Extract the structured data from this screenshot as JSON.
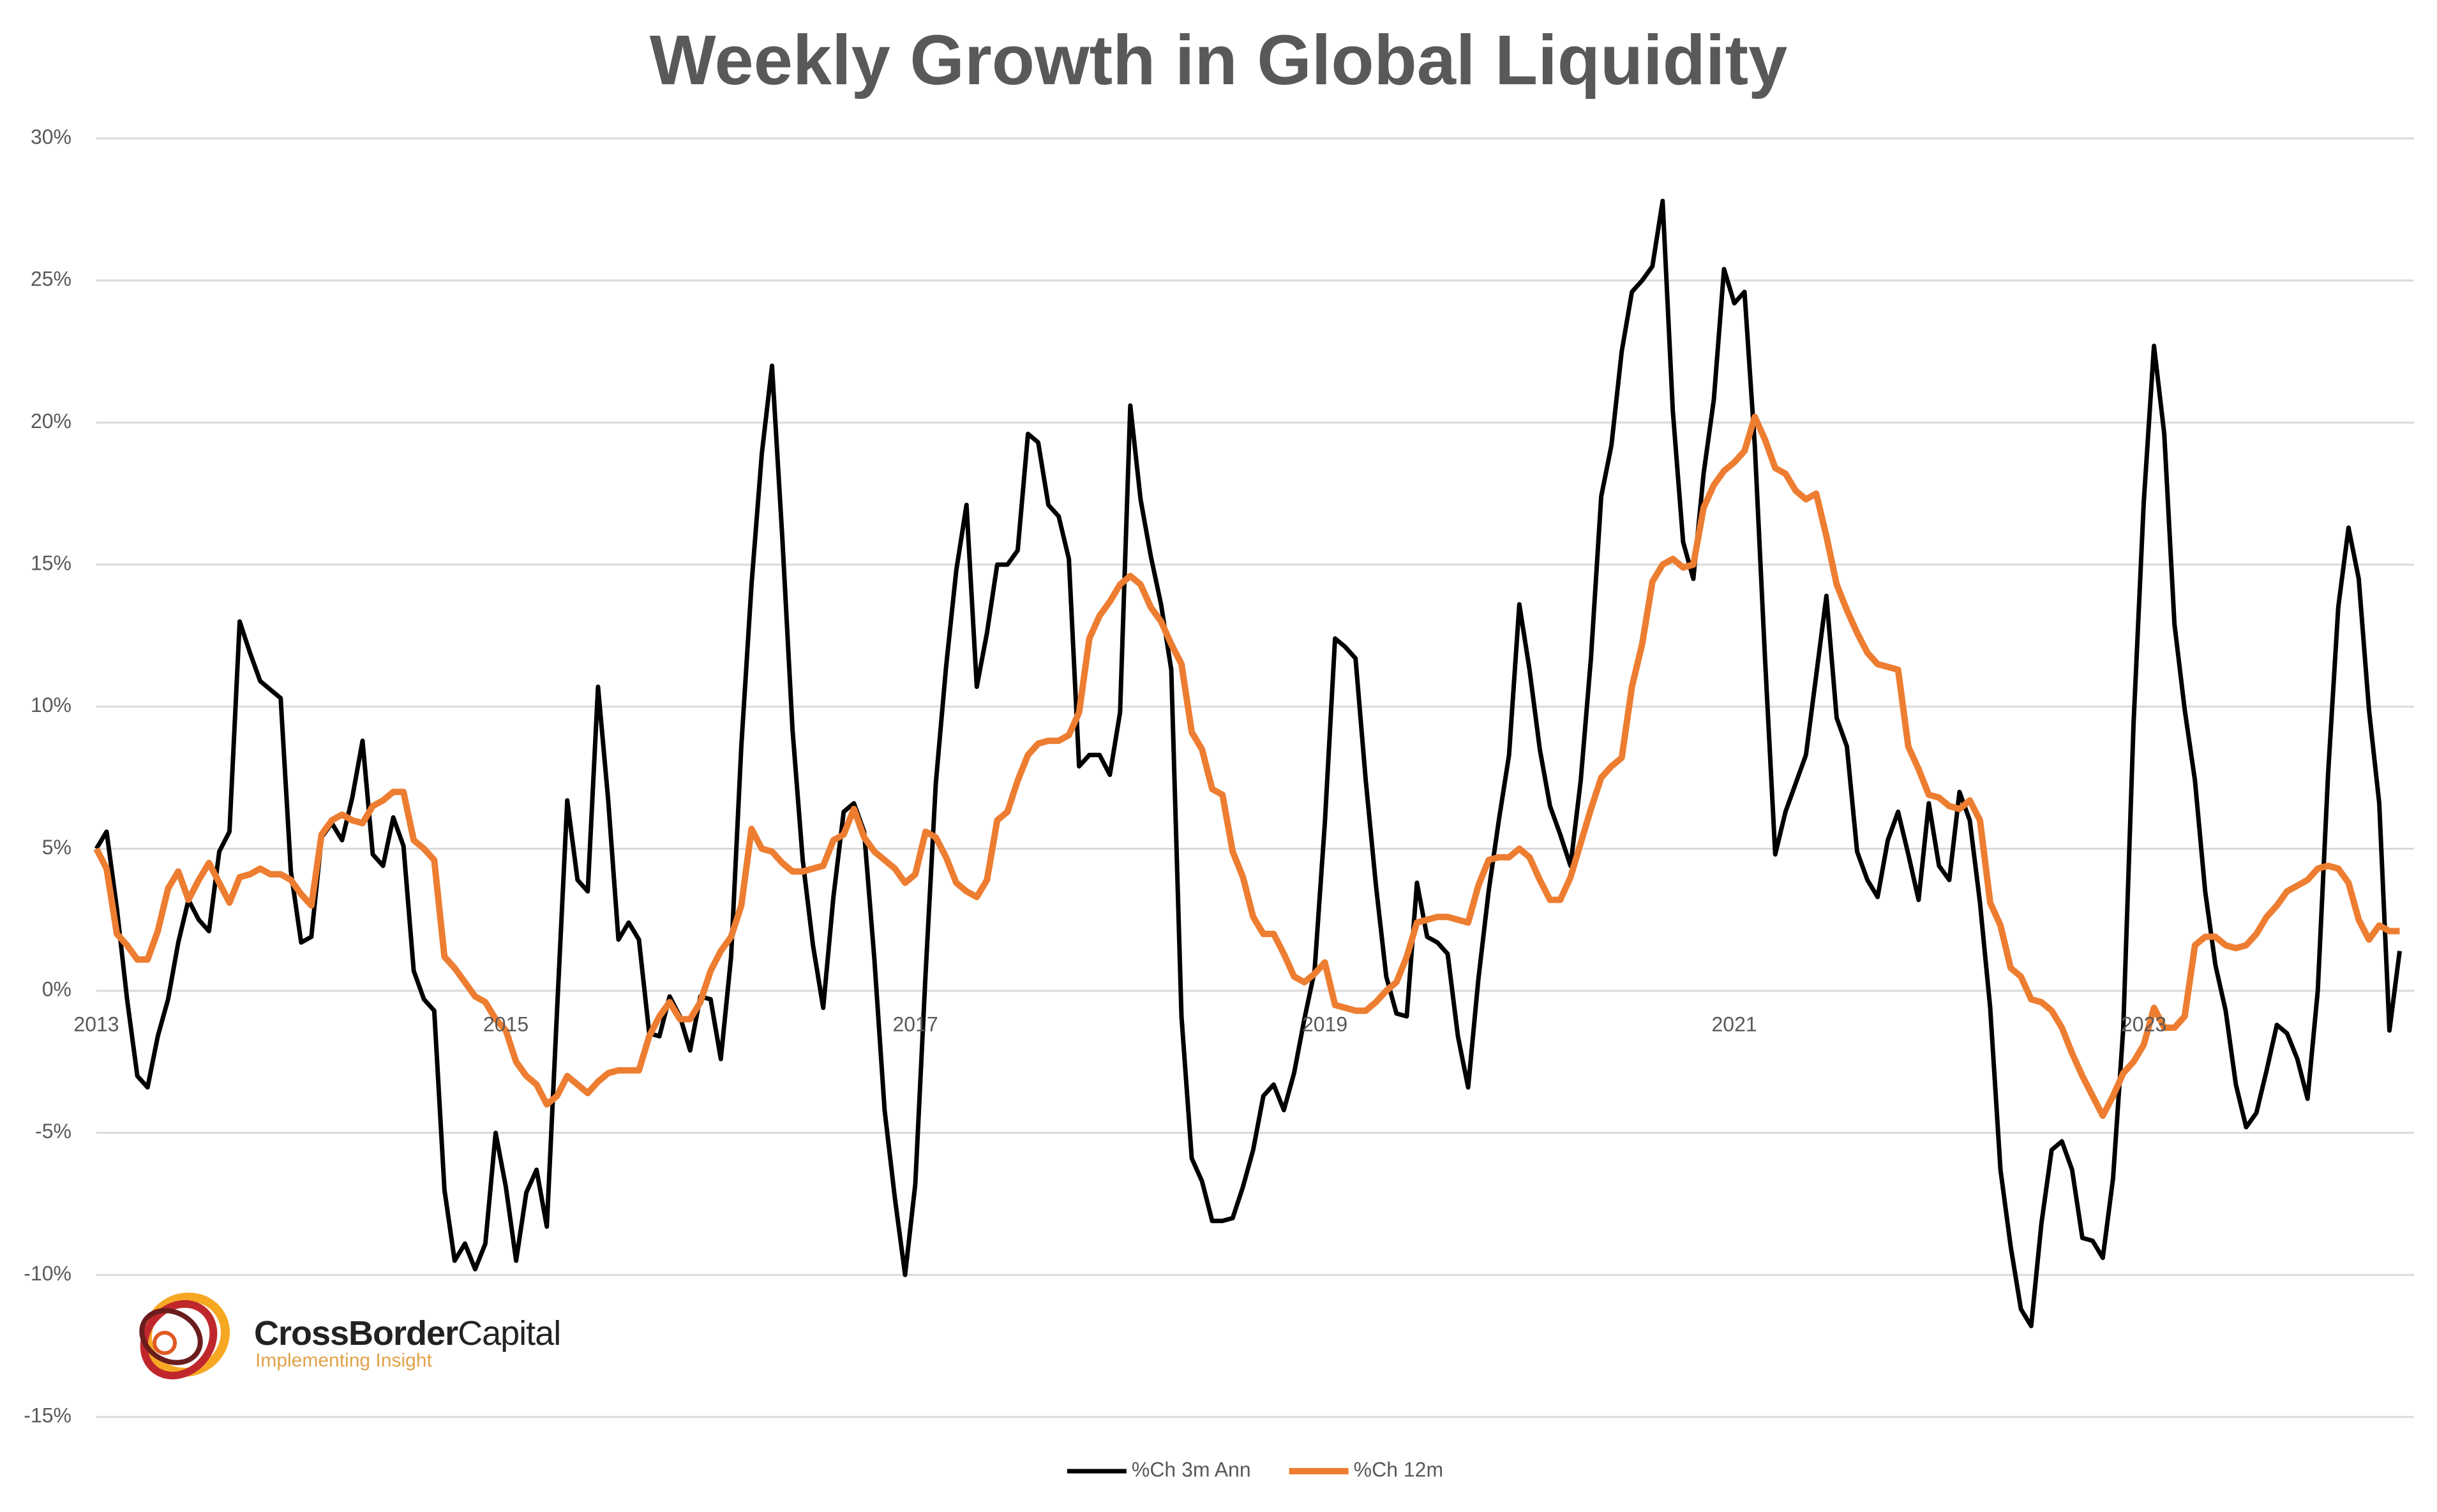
{
  "chart_data": {
    "type": "line",
    "title": "Weekly Growth in Global Liquidity",
    "x": [
      2013,
      2013.05,
      2013.1,
      2013.15,
      2013.2,
      2013.25,
      2013.3,
      2013.35,
      2013.4,
      2013.45,
      2013.5,
      2013.55,
      2013.6,
      2013.65,
      2013.7,
      2013.75,
      2013.8,
      2013.85,
      2013.9,
      2013.95,
      2014,
      2014.05,
      2014.1,
      2014.15,
      2014.2,
      2014.25,
      2014.3,
      2014.35,
      2014.4,
      2014.45,
      2014.5,
      2014.55,
      2014.6,
      2014.65,
      2014.7,
      2014.75,
      2014.8,
      2014.85,
      2014.9,
      2014.95,
      2015,
      2015.05,
      2015.1,
      2015.15,
      2015.2,
      2015.25,
      2015.3,
      2015.35,
      2015.4,
      2015.45,
      2015.5,
      2015.55,
      2015.6,
      2015.65,
      2015.7,
      2015.75,
      2015.8,
      2015.85,
      2015.9,
      2015.95,
      2016,
      2016.05,
      2016.1,
      2016.15,
      2016.2,
      2016.25,
      2016.3,
      2016.35,
      2016.4,
      2016.45,
      2016.5,
      2016.55,
      2016.6,
      2016.65,
      2016.7,
      2016.75,
      2016.8,
      2016.85,
      2016.9,
      2016.95,
      2017,
      2017.05,
      2017.1,
      2017.15,
      2017.2,
      2017.25,
      2017.3,
      2017.35,
      2017.4,
      2017.45,
      2017.5,
      2017.55,
      2017.6,
      2017.65,
      2017.7,
      2017.75,
      2017.8,
      2017.85,
      2017.9,
      2017.95,
      2018,
      2018.05,
      2018.1,
      2018.15,
      2018.2,
      2018.25,
      2018.3,
      2018.35,
      2018.4,
      2018.45,
      2018.5,
      2018.55,
      2018.6,
      2018.65,
      2018.7,
      2018.75,
      2018.8,
      2018.85,
      2018.9,
      2018.95,
      2019,
      2019.05,
      2019.1,
      2019.15,
      2019.2,
      2019.25,
      2019.3,
      2019.35,
      2019.4,
      2019.45,
      2019.5,
      2019.55,
      2019.6,
      2019.65,
      2019.7,
      2019.75,
      2019.8,
      2019.85,
      2019.9,
      2019.95,
      2020,
      2020.05,
      2020.1,
      2020.15,
      2020.2,
      2020.25,
      2020.3,
      2020.35,
      2020.4,
      2020.45,
      2020.5,
      2020.55,
      2020.6,
      2020.65,
      2020.7,
      2020.75,
      2020.8,
      2020.85,
      2020.9,
      2020.95,
      2021,
      2021.05,
      2021.1,
      2021.15,
      2021.2,
      2021.25,
      2021.3,
      2021.35,
      2021.4,
      2021.45,
      2021.5,
      2021.55,
      2021.6,
      2021.65,
      2021.7,
      2021.75,
      2021.8,
      2021.85,
      2021.9,
      2021.95,
      2022,
      2022.05,
      2022.1,
      2022.15,
      2022.2,
      2022.25,
      2022.3,
      2022.35,
      2022.4,
      2022.45,
      2022.5,
      2022.55,
      2022.6,
      2022.65,
      2022.7,
      2022.75,
      2022.8,
      2022.85,
      2022.9,
      2022.95,
      2023,
      2023.05,
      2023.1,
      2023.15,
      2023.2,
      2023.25,
      2023.3,
      2023.35,
      2023.4,
      2023.45,
      2023.5,
      2023.55,
      2023.6,
      2023.65,
      2023.7,
      2023.75,
      2023.8,
      2023.85,
      2023.9,
      2023.95,
      2024,
      2024.05,
      2024.1,
      2024.15,
      2024.2,
      2024.25
    ],
    "series": [
      {
        "name": "%Ch 3m Ann",
        "color": "#000000",
        "values": [
          5,
          5.6,
          2.9,
          -0.3,
          -3,
          -3.4,
          -1.6,
          -0.3,
          1.7,
          3.2,
          2.5,
          2.1,
          4.9,
          5.6,
          13,
          11.9,
          10.9,
          10.6,
          10.3,
          4.2,
          1.7,
          1.9,
          5.4,
          5.9,
          5.3,
          6.8,
          8.8,
          4.8,
          4.4,
          6.1,
          5.1,
          0.7,
          -0.3,
          -0.7,
          -7,
          -9.5,
          -8.9,
          -9.8,
          -8.9,
          -5,
          -6.9,
          -9.5,
          -7.1,
          -6.3,
          -8.3,
          -0.7,
          6.7,
          3.9,
          3.5,
          10.7,
          6.7,
          1.8,
          2.4,
          1.8,
          -1.5,
          -1.6,
          -0.2,
          -0.9,
          -2.1,
          -0.2,
          -0.3,
          -2.4,
          1.2,
          8.6,
          14.3,
          18.9,
          22,
          16,
          9.2,
          4.6,
          1.6,
          -0.6,
          3.3,
          6.3,
          6.6,
          5.6,
          1.1,
          -4.2,
          -7.3,
          -10,
          -6.8,
          0.6,
          7.3,
          11.4,
          14.8,
          17.1,
          10.7,
          12.6,
          15,
          15,
          15.5,
          19.6,
          19.3,
          17.1,
          16.7,
          15.2,
          7.9,
          8.3,
          8.3,
          7.6,
          9.8,
          20.6,
          17.3,
          15.3,
          13.6,
          11.3,
          -0.9,
          -5.9,
          -6.7,
          -8.1,
          -8.1,
          -8,
          -6.9,
          -5.6,
          -3.7,
          -3.3,
          -4.2,
          -2.9,
          -1,
          0.7,
          5.9,
          12.4,
          12.1,
          11.7,
          7.4,
          3.7,
          0.5,
          -0.8,
          -0.9,
          3.8,
          1.9,
          1.7,
          1.3,
          -1.6,
          -3.4,
          0.4,
          3.5,
          6,
          8.3,
          13.6,
          11.3,
          8.5,
          6.5,
          5.5,
          4.4,
          7.4,
          11.7,
          17.4,
          19.2,
          22.5,
          24.6,
          25,
          25.5,
          27.8,
          20.4,
          15.8,
          14.5,
          18.2,
          20.8,
          25.4,
          24.2,
          24.6,
          19.2,
          11.7,
          4.8,
          6.3,
          7.3,
          8.3,
          11.1,
          13.9,
          9.6,
          8.6,
          4.9,
          3.9,
          3.3,
          5.3,
          6.3,
          4.8,
          3.2,
          6.6,
          4.4,
          3.9,
          7,
          6,
          3.1,
          -0.6,
          -6.3,
          -9,
          -11.2,
          -11.8,
          -8.2,
          -5.6,
          -5.3,
          -6.3,
          -8.7,
          -8.8,
          -9.4,
          -6.6,
          -1.3,
          9.4,
          17.2,
          22.7,
          19.6,
          12.9,
          9.9,
          7.4,
          3.5,
          0.9,
          -0.7,
          -3.3,
          -4.8,
          -4.3,
          -2.8,
          -1.2,
          -1.5,
          -2.4,
          -3.8,
          0,
          7.6,
          13.5,
          16.3,
          14.5,
          9.9,
          6.6,
          -1.4,
          1.4
        ]
      },
      {
        "name": "%Ch 12m",
        "color": "#ed7d31",
        "values": [
          5,
          4.3,
          2,
          1.6,
          1.1,
          1.1,
          2.1,
          3.6,
          4.2,
          3.2,
          3.9,
          4.5,
          3.8,
          3.1,
          4,
          4.1,
          4.3,
          4.1,
          4.1,
          3.9,
          3.4,
          3,
          5.5,
          6,
          6.2,
          6,
          5.9,
          6.5,
          6.7,
          7,
          7,
          5.3,
          5,
          4.6,
          1.2,
          0.8,
          0.3,
          -0.2,
          -0.4,
          -1,
          -1.4,
          -2.5,
          -3,
          -3.3,
          -4,
          -3.7,
          -3,
          -3.3,
          -3.6,
          -3.2,
          -2.9,
          -2.8,
          -2.8,
          -2.8,
          -1.6,
          -0.9,
          -0.4,
          -1,
          -1,
          -0.4,
          0.7,
          1.4,
          1.9,
          3,
          5.7,
          5,
          4.9,
          4.5,
          4.2,
          4.2,
          4.3,
          4.4,
          5.3,
          5.5,
          6.4,
          5.4,
          4.9,
          4.6,
          4.3,
          3.8,
          4.1,
          5.6,
          5.4,
          4.7,
          3.8,
          3.5,
          3.3,
          3.9,
          6,
          6.3,
          7.4,
          8.3,
          8.7,
          8.8,
          8.8,
          9,
          9.8,
          12.4,
          13.2,
          13.7,
          14.3,
          14.6,
          14.3,
          13.5,
          13,
          12.2,
          11.5,
          9.1,
          8.5,
          7.1,
          6.9,
          4.9,
          4,
          2.6,
          2,
          2,
          1.3,
          0.5,
          0.3,
          0.6,
          1,
          -0.5,
          -0.6,
          -0.7,
          -0.7,
          -0.4,
          0,
          0.3,
          1.2,
          2.4,
          2.5,
          2.6,
          2.6,
          2.5,
          2.4,
          3.7,
          4.6,
          4.7,
          4.7,
          5,
          4.7,
          3.9,
          3.2,
          3.2,
          4,
          5.2,
          6.4,
          7.5,
          7.9,
          8.2,
          10.7,
          12.2,
          14.4,
          15,
          15.2,
          14.9,
          15,
          17,
          17.8,
          18.3,
          18.6,
          19,
          20.2,
          19.4,
          18.4,
          18.2,
          17.6,
          17.3,
          17.5,
          16,
          14.3,
          13.4,
          12.6,
          11.9,
          11.5,
          11.4,
          11.3,
          8.6,
          7.8,
          6.9,
          6.8,
          6.5,
          6.4,
          6.7,
          6,
          3.1,
          2.3,
          0.8,
          0.5,
          -0.3,
          -0.4,
          -0.7,
          -1.3,
          -2.2,
          -3,
          -3.7,
          -4.4,
          -3.7,
          -2.9,
          -2.5,
          -1.9,
          -0.6,
          -1.3,
          -1.3,
          -0.9,
          1.6,
          1.9,
          1.9,
          1.6,
          1.5,
          1.6,
          2,
          2.6,
          3,
          3.5,
          3.7,
          3.9,
          4.3,
          4.4,
          4.3,
          3.8,
          2.5,
          1.8,
          2.3,
          2.1,
          2.1
        ]
      }
    ],
    "xlim": [
      2013,
      2024.32
    ],
    "xticks": [
      2013,
      2015,
      2017,
      2019,
      2021,
      2023
    ],
    "ylim": [
      -15,
      30
    ],
    "yticks": [
      {
        "value": -15,
        "label": "-15%"
      },
      {
        "value": -10,
        "label": "-10%"
      },
      {
        "value": -5,
        "label": "-5%"
      },
      {
        "value": 0,
        "label": "0%"
      },
      {
        "value": 5,
        "label": "5%"
      },
      {
        "value": 10,
        "label": "10%"
      },
      {
        "value": 15,
        "label": "15%"
      },
      {
        "value": 20,
        "label": "20%"
      },
      {
        "value": 25,
        "label": "25%"
      },
      {
        "value": 30,
        "label": "30%"
      }
    ],
    "grid": true,
    "legend": "bottom"
  },
  "logo": {
    "name_bold": "CrossBorder",
    "name_light": "Capital",
    "tagline": "Implementing Insight"
  }
}
